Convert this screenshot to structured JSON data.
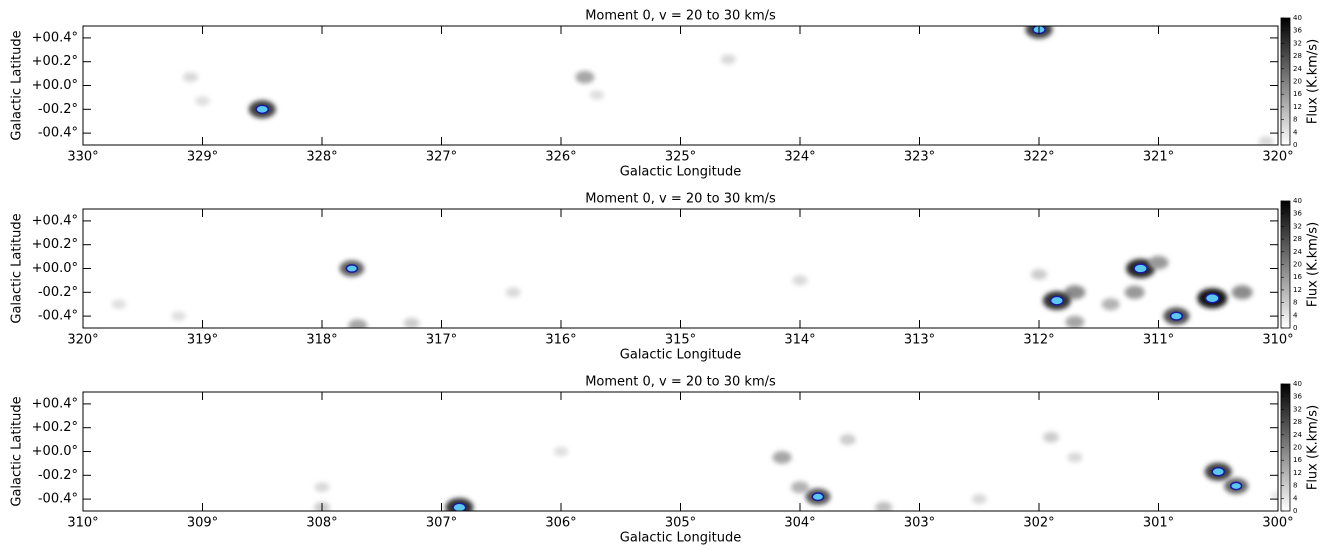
{
  "chart_data": [
    {
      "type": "heatmap",
      "title": "Moment 0, v = 20 to 30 km/s",
      "xlabel": "Galactic Longitude",
      "ylabel": "Galactic Latitude",
      "xlim": [
        330,
        320
      ],
      "ylim": [
        -0.5,
        0.5
      ],
      "xticks": [
        {
          "value": 330,
          "label": "330°"
        },
        {
          "value": 329,
          "label": "329°"
        },
        {
          "value": 328,
          "label": "328°"
        },
        {
          "value": 327,
          "label": "327°"
        },
        {
          "value": 326,
          "label": "326°"
        },
        {
          "value": 325,
          "label": "325°"
        },
        {
          "value": 324,
          "label": "324°"
        },
        {
          "value": 323,
          "label": "323°"
        },
        {
          "value": 322,
          "label": "322°"
        },
        {
          "value": 321,
          "label": "321°"
        },
        {
          "value": 320,
          "label": "320°"
        }
      ],
      "yticks": [
        {
          "value": 0.4,
          "label": "+00.4°"
        },
        {
          "value": 0.2,
          "label": "+00.2°"
        },
        {
          "value": 0,
          "label": "+00.0°"
        },
        {
          "value": -0.2,
          "label": "-00.2°"
        },
        {
          "value": -0.4,
          "label": "-00.4°"
        }
      ],
      "clim": [
        0,
        40
      ],
      "cticks": [
        0,
        4,
        8,
        12,
        16,
        20,
        24,
        28,
        32,
        36,
        40
      ],
      "clabel": "Flux (K.km/s)",
      "contour_color": "#1a1aa0",
      "emission": [
        {
          "x": 328.5,
          "y": -0.2,
          "flux": 30
        },
        {
          "x": 329.1,
          "y": 0.07,
          "flux": 6
        },
        {
          "x": 329.0,
          "y": -0.13,
          "flux": 5
        },
        {
          "x": 325.8,
          "y": 0.07,
          "flux": 14
        },
        {
          "x": 325.7,
          "y": -0.08,
          "flux": 5
        },
        {
          "x": 324.6,
          "y": 0.22,
          "flux": 6
        },
        {
          "x": 322.0,
          "y": 0.47,
          "flux": 30
        },
        {
          "x": 320.1,
          "y": -0.47,
          "flux": 6
        }
      ]
    },
    {
      "type": "heatmap",
      "title": "Moment 0, v = 20 to 30 km/s",
      "xlabel": "Galactic Longitude",
      "ylabel": "Galactic Latitude",
      "xlim": [
        320,
        310
      ],
      "ylim": [
        -0.5,
        0.5
      ],
      "xticks": [
        {
          "value": 320,
          "label": "320°"
        },
        {
          "value": 319,
          "label": "319°"
        },
        {
          "value": 318,
          "label": "318°"
        },
        {
          "value": 317,
          "label": "317°"
        },
        {
          "value": 316,
          "label": "316°"
        },
        {
          "value": 315,
          "label": "315°"
        },
        {
          "value": 314,
          "label": "314°"
        },
        {
          "value": 313,
          "label": "313°"
        },
        {
          "value": 312,
          "label": "312°"
        },
        {
          "value": 311,
          "label": "311°"
        },
        {
          "value": 310,
          "label": "310°"
        }
      ],
      "yticks": [
        {
          "value": 0.4,
          "label": "+00.4°"
        },
        {
          "value": 0.2,
          "label": "+00.2°"
        },
        {
          "value": 0,
          "label": "+00.0°"
        },
        {
          "value": -0.2,
          "label": "-00.2°"
        },
        {
          "value": -0.4,
          "label": "-00.4°"
        }
      ],
      "clim": [
        0,
        40
      ],
      "cticks": [
        0,
        4,
        8,
        12,
        16,
        20,
        24,
        28,
        32,
        36,
        40
      ],
      "clabel": "Flux (K.km/s)",
      "contour_color": "#1a1aa0",
      "emission": [
        {
          "x": 317.75,
          "y": 0.0,
          "flux": 25
        },
        {
          "x": 317.7,
          "y": -0.48,
          "flux": 14
        },
        {
          "x": 317.25,
          "y": -0.46,
          "flux": 8
        },
        {
          "x": 319.7,
          "y": -0.3,
          "flux": 5
        },
        {
          "x": 319.2,
          "y": -0.4,
          "flux": 5
        },
        {
          "x": 316.4,
          "y": -0.2,
          "flux": 6
        },
        {
          "x": 314.0,
          "y": -0.1,
          "flux": 6
        },
        {
          "x": 312.0,
          "y": -0.05,
          "flux": 8
        },
        {
          "x": 311.7,
          "y": -0.2,
          "flux": 18
        },
        {
          "x": 311.85,
          "y": -0.27,
          "flux": 32
        },
        {
          "x": 311.7,
          "y": -0.45,
          "flux": 14
        },
        {
          "x": 311.4,
          "y": -0.3,
          "flux": 12
        },
        {
          "x": 311.15,
          "y": 0.0,
          "flux": 34
        },
        {
          "x": 311.2,
          "y": -0.2,
          "flux": 16
        },
        {
          "x": 310.85,
          "y": -0.4,
          "flux": 28
        },
        {
          "x": 310.55,
          "y": -0.25,
          "flux": 36
        },
        {
          "x": 310.3,
          "y": -0.2,
          "flux": 18
        },
        {
          "x": 311.0,
          "y": 0.05,
          "flux": 16
        }
      ]
    },
    {
      "type": "heatmap",
      "title": "Moment 0, v = 20 to 30 km/s",
      "xlabel": "Galactic Longitude",
      "ylabel": "Galactic Latitude",
      "xlim": [
        310,
        300
      ],
      "ylim": [
        -0.5,
        0.5
      ],
      "xticks": [
        {
          "value": 310,
          "label": "310°"
        },
        {
          "value": 309,
          "label": "309°"
        },
        {
          "value": 308,
          "label": "308°"
        },
        {
          "value": 307,
          "label": "307°"
        },
        {
          "value": 306,
          "label": "306°"
        },
        {
          "value": 305,
          "label": "305°"
        },
        {
          "value": 304,
          "label": "304°"
        },
        {
          "value": 303,
          "label": "303°"
        },
        {
          "value": 302,
          "label": "302°"
        },
        {
          "value": 301,
          "label": "301°"
        },
        {
          "value": 300,
          "label": "300°"
        }
      ],
      "yticks": [
        {
          "value": 0.4,
          "label": "+00.4°"
        },
        {
          "value": 0.2,
          "label": "+00.2°"
        },
        {
          "value": 0,
          "label": "+00.0°"
        },
        {
          "value": -0.2,
          "label": "-00.2°"
        },
        {
          "value": -0.4,
          "label": "-00.4°"
        }
      ],
      "clim": [
        0,
        40
      ],
      "cticks": [
        0,
        4,
        8,
        12,
        16,
        20,
        24,
        28,
        32,
        36,
        40
      ],
      "clabel": "Flux (K.km/s)",
      "contour_color": "#1a1aa0",
      "emission": [
        {
          "x": 308.0,
          "y": -0.3,
          "flux": 6
        },
        {
          "x": 308.0,
          "y": -0.47,
          "flux": 8
        },
        {
          "x": 306.85,
          "y": -0.47,
          "flux": 32
        },
        {
          "x": 306.0,
          "y": 0.0,
          "flux": 5
        },
        {
          "x": 304.15,
          "y": -0.05,
          "flux": 14
        },
        {
          "x": 303.6,
          "y": 0.1,
          "flux": 8
        },
        {
          "x": 304.0,
          "y": -0.3,
          "flux": 12
        },
        {
          "x": 303.85,
          "y": -0.38,
          "flux": 26
        },
        {
          "x": 303.3,
          "y": -0.47,
          "flux": 10
        },
        {
          "x": 302.5,
          "y": -0.4,
          "flux": 6
        },
        {
          "x": 301.9,
          "y": 0.12,
          "flux": 8
        },
        {
          "x": 301.7,
          "y": -0.05,
          "flux": 6
        },
        {
          "x": 300.5,
          "y": -0.17,
          "flux": 30
        },
        {
          "x": 300.35,
          "y": -0.29,
          "flux": 24
        },
        {
          "x": 300.0,
          "y": -0.37,
          "flux": 4
        }
      ]
    }
  ]
}
